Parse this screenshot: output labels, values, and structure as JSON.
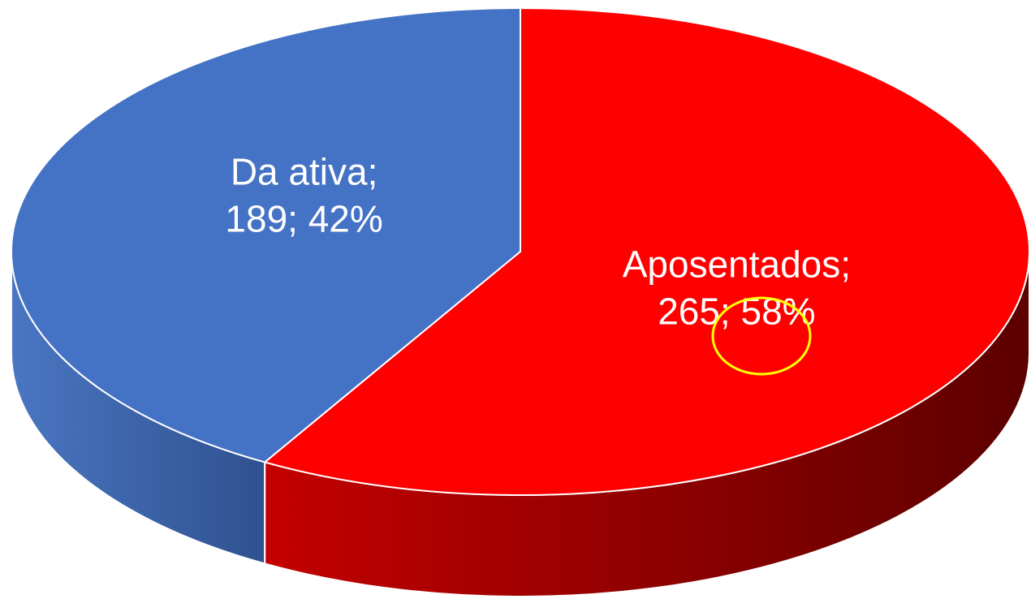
{
  "chart_data": {
    "type": "pie3d",
    "categories": [
      "Da ativa",
      "Aposentados"
    ],
    "values": [
      189,
      265
    ],
    "percentages": [
      42,
      58
    ],
    "value_labels": [
      "189; 42%",
      "265; 58%"
    ],
    "label_separator": ";",
    "colors": [
      "#4472c4",
      "#ff0000"
    ],
    "start_angle": -90,
    "direction": "counterclockwise"
  }
}
